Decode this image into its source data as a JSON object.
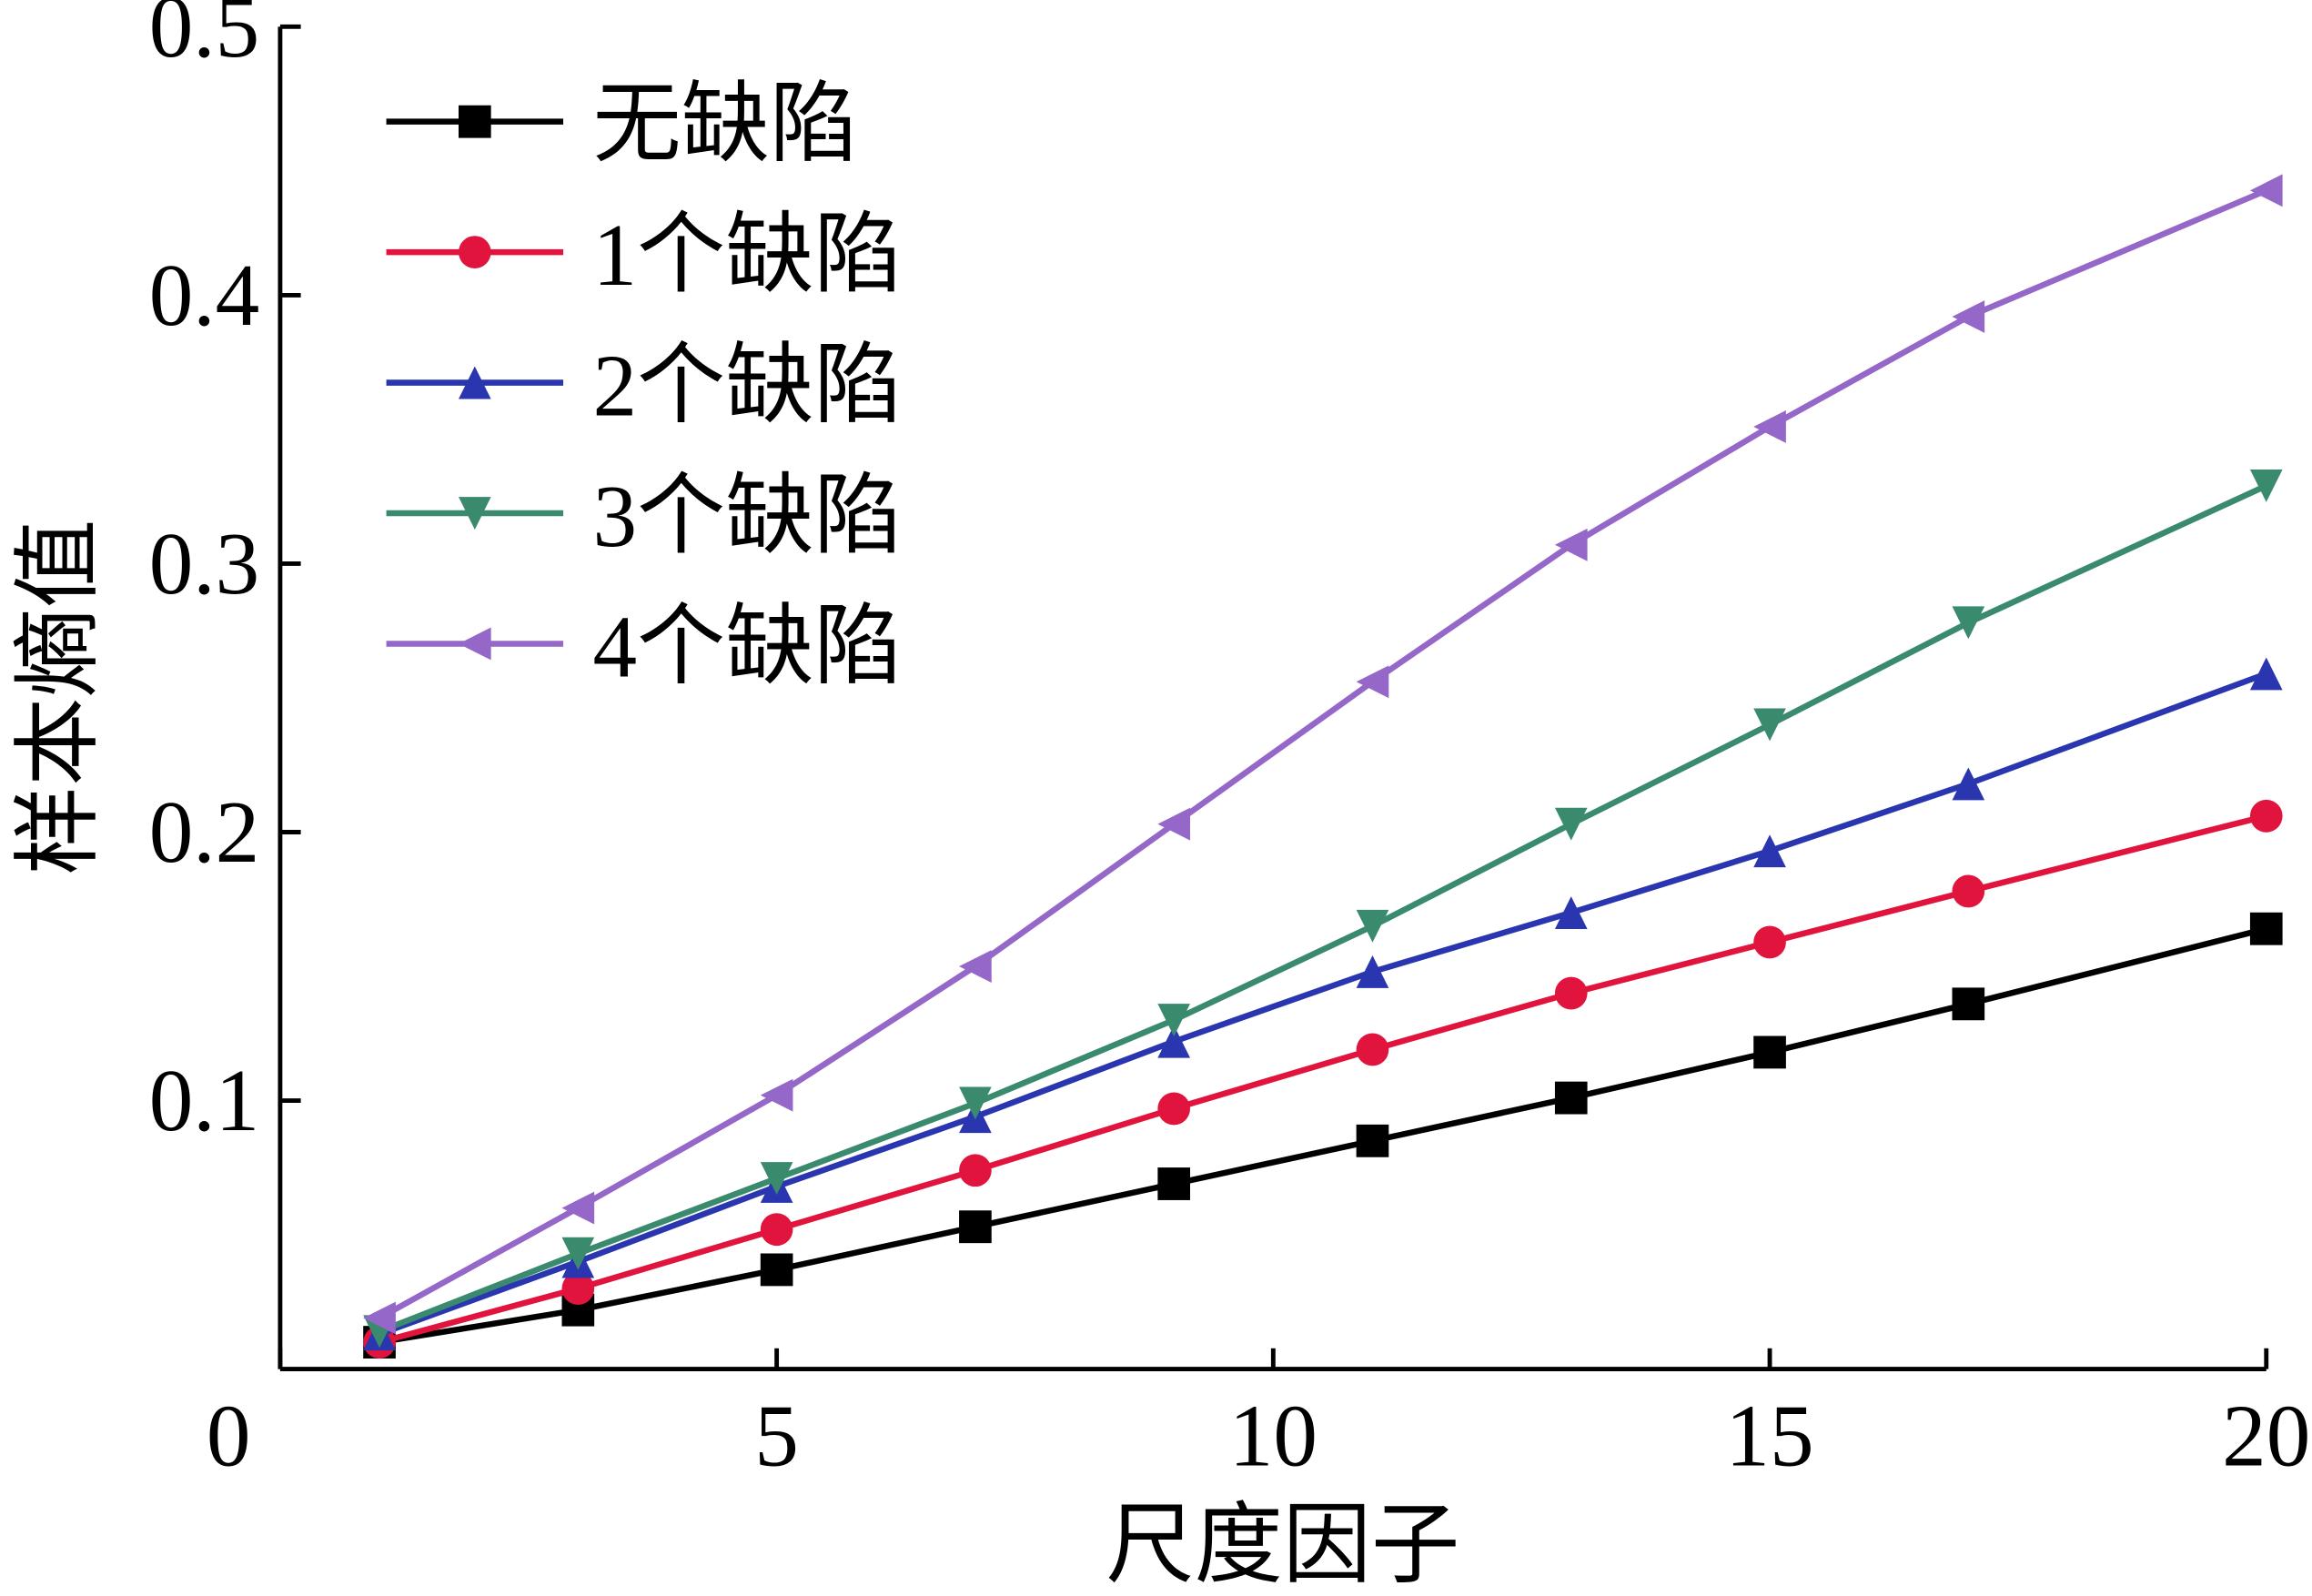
{
  "chart_data": {
    "type": "line",
    "x_label": "尺度因子",
    "y_label": "样本熵值",
    "x": [
      1,
      3,
      5,
      7,
      9,
      11,
      13,
      15,
      17,
      20
    ],
    "series": [
      {
        "name": "无缺陷",
        "color": "#000000",
        "marker": "square",
        "values": [
          0.01,
          0.022,
          0.037,
          0.053,
          0.069,
          0.085,
          0.101,
          0.118,
          0.136,
          0.164
        ]
      },
      {
        "name": "1个缺陷",
        "color": "#e0143c",
        "marker": "circle",
        "values": [
          0.01,
          0.03,
          0.052,
          0.074,
          0.097,
          0.119,
          0.14,
          0.159,
          0.178,
          0.206
        ]
      },
      {
        "name": "2个缺陷",
        "color": "#2a35b0",
        "marker": "triangle-up",
        "values": [
          0.013,
          0.04,
          0.068,
          0.094,
          0.122,
          0.148,
          0.17,
          0.193,
          0.218,
          0.259
        ]
      },
      {
        "name": "3个缺陷",
        "color": "#3a8a6e",
        "marker": "triangle-down",
        "values": [
          0.014,
          0.043,
          0.071,
          0.099,
          0.13,
          0.165,
          0.203,
          0.24,
          0.278,
          0.329
        ]
      },
      {
        "name": "4个缺陷",
        "color": "#9467c8",
        "marker": "triangle-left",
        "values": [
          0.019,
          0.06,
          0.102,
          0.15,
          0.203,
          0.256,
          0.307,
          0.351,
          0.392,
          0.439
        ]
      }
    ],
    "xlim": [
      0,
      20
    ],
    "xticks": [
      0,
      5,
      10,
      15,
      20
    ],
    "ylim": [
      0,
      0.5
    ],
    "yticks": [
      0.1,
      0.2,
      0.3,
      0.4,
      0.5
    ],
    "legend": "upper-left",
    "grid": false
  }
}
